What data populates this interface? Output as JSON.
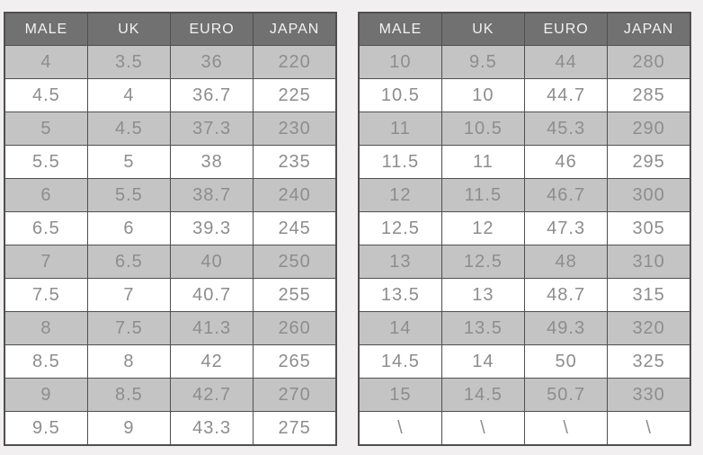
{
  "page": {
    "background": "#f1eff0"
  },
  "colors": {
    "header_bg": "#717171",
    "header_text": "#f2f2f2",
    "row_gray_bg": "#c4c4c4",
    "row_white_bg": "#ffffff",
    "cell_text": "#8d8d8d",
    "border": "#4f4f4f",
    "page_bg": "#f1eff0"
  },
  "chart_data": [
    {
      "type": "table",
      "columns": [
        "MALE",
        "UK",
        "EURO",
        "JAPAN"
      ],
      "rows": [
        [
          "4",
          "3.5",
          "36",
          "220"
        ],
        [
          "4.5",
          "4",
          "36.7",
          "225"
        ],
        [
          "5",
          "4.5",
          "37.3",
          "230"
        ],
        [
          "5.5",
          "5",
          "38",
          "235"
        ],
        [
          "6",
          "5.5",
          "38.7",
          "240"
        ],
        [
          "6.5",
          "6",
          "39.3",
          "245"
        ],
        [
          "7",
          "6.5",
          "40",
          "250"
        ],
        [
          "7.5",
          "7",
          "40.7",
          "255"
        ],
        [
          "8",
          "7.5",
          "41.3",
          "260"
        ],
        [
          "8.5",
          "8",
          "42",
          "265"
        ],
        [
          "9",
          "8.5",
          "42.7",
          "270"
        ],
        [
          "9.5",
          "9",
          "43.3",
          "275"
        ]
      ]
    },
    {
      "type": "table",
      "columns": [
        "MALE",
        "UK",
        "EURO",
        "JAPAN"
      ],
      "rows": [
        [
          "10",
          "9.5",
          "44",
          "280"
        ],
        [
          "10.5",
          "10",
          "44.7",
          "285"
        ],
        [
          "11",
          "10.5",
          "45.3",
          "290"
        ],
        [
          "11.5",
          "11",
          "46",
          "295"
        ],
        [
          "12",
          "11.5",
          "46.7",
          "300"
        ],
        [
          "12.5",
          "12",
          "47.3",
          "305"
        ],
        [
          "13",
          "12.5",
          "48",
          "310"
        ],
        [
          "13.5",
          "13",
          "48.7",
          "315"
        ],
        [
          "14",
          "13.5",
          "49.3",
          "320"
        ],
        [
          "14.5",
          "14",
          "50",
          "325"
        ],
        [
          "15",
          "14.5",
          "50.7",
          "330"
        ],
        [
          "\\",
          "\\",
          "\\",
          "\\"
        ]
      ]
    }
  ]
}
